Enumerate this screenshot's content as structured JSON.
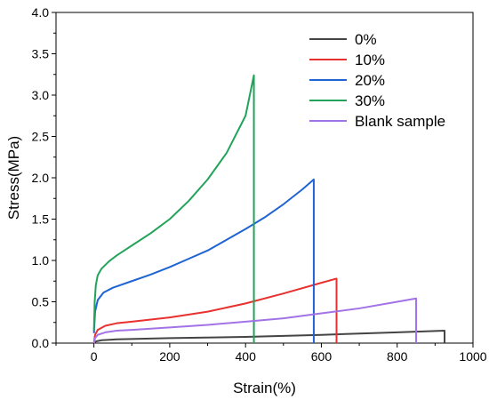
{
  "chart_data": {
    "type": "line",
    "title": "",
    "xlabel": "Strain(%)",
    "ylabel": "Stress(MPa)",
    "xlim": [
      -100,
      1000
    ],
    "ylim": [
      0,
      4.0
    ],
    "x_ticks": [
      0,
      200,
      400,
      600,
      800,
      1000
    ],
    "x_tick_labels": [
      "0",
      "200",
      "400",
      "600",
      "800",
      "1000"
    ],
    "y_ticks": [
      0,
      0.5,
      1.0,
      1.5,
      2.0,
      2.5,
      3.0,
      3.5,
      4.0
    ],
    "y_tick_labels": [
      "0.0",
      "0.5",
      "1.0",
      "1.5",
      "2.0",
      "2.5",
      "3.0",
      "3.5",
      "4.0"
    ],
    "grid": false,
    "legend_position": "top-right",
    "series": [
      {
        "name": "0%",
        "color": "#444444",
        "points": [
          [
            0,
            0.0
          ],
          [
            5,
            0.02
          ],
          [
            20,
            0.035
          ],
          [
            60,
            0.045
          ],
          [
            200,
            0.06
          ],
          [
            400,
            0.075
          ],
          [
            600,
            0.1
          ],
          [
            800,
            0.13
          ],
          [
            925,
            0.15
          ],
          [
            925,
            0.0
          ]
        ]
      },
      {
        "name": "10%",
        "color": "#e8312f",
        "points": [
          [
            0,
            0.0
          ],
          [
            3,
            0.1
          ],
          [
            10,
            0.16
          ],
          [
            30,
            0.21
          ],
          [
            60,
            0.24
          ],
          [
            100,
            0.26
          ],
          [
            200,
            0.31
          ],
          [
            300,
            0.38
          ],
          [
            400,
            0.48
          ],
          [
            500,
            0.6
          ],
          [
            600,
            0.73
          ],
          [
            640,
            0.78
          ],
          [
            640,
            0.0
          ]
        ]
      },
      {
        "name": "20%",
        "color": "#1f64d2",
        "points": [
          [
            0,
            0.12
          ],
          [
            3,
            0.38
          ],
          [
            10,
            0.52
          ],
          [
            25,
            0.61
          ],
          [
            50,
            0.67
          ],
          [
            100,
            0.75
          ],
          [
            150,
            0.83
          ],
          [
            200,
            0.92
          ],
          [
            250,
            1.02
          ],
          [
            300,
            1.12
          ],
          [
            350,
            1.25
          ],
          [
            400,
            1.38
          ],
          [
            450,
            1.52
          ],
          [
            500,
            1.68
          ],
          [
            550,
            1.86
          ],
          [
            580,
            1.98
          ],
          [
            580,
            0.0
          ]
        ]
      },
      {
        "name": "30%",
        "color": "#22a35a",
        "points": [
          [
            0,
            0.15
          ],
          [
            2,
            0.5
          ],
          [
            5,
            0.7
          ],
          [
            10,
            0.82
          ],
          [
            20,
            0.9
          ],
          [
            40,
            0.99
          ],
          [
            60,
            1.06
          ],
          [
            80,
            1.12
          ],
          [
            100,
            1.18
          ],
          [
            150,
            1.33
          ],
          [
            200,
            1.5
          ],
          [
            250,
            1.72
          ],
          [
            300,
            1.98
          ],
          [
            350,
            2.3
          ],
          [
            400,
            2.75
          ],
          [
            422,
            3.24
          ],
          [
            422,
            0.0
          ]
        ]
      },
      {
        "name": "Blank sample",
        "color": "#a273e6",
        "points": [
          [
            0,
            0.0
          ],
          [
            3,
            0.06
          ],
          [
            10,
            0.1
          ],
          [
            30,
            0.13
          ],
          [
            60,
            0.15
          ],
          [
            100,
            0.16
          ],
          [
            200,
            0.19
          ],
          [
            300,
            0.22
          ],
          [
            400,
            0.26
          ],
          [
            500,
            0.3
          ],
          [
            600,
            0.36
          ],
          [
            700,
            0.42
          ],
          [
            800,
            0.5
          ],
          [
            850,
            0.54
          ],
          [
            850,
            0.0
          ]
        ]
      }
    ]
  }
}
